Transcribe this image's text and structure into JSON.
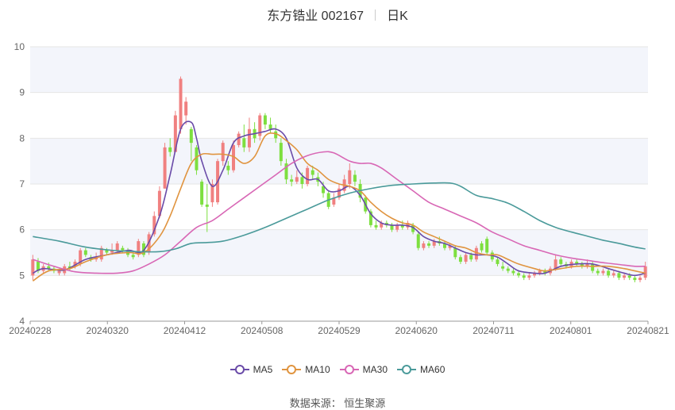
{
  "header": {
    "stock": "东方锆业 002167",
    "period": "日K"
  },
  "source_text": "数据来源： 恒生聚源",
  "colors": {
    "up": "#f08080",
    "down": "#7ddf3f",
    "ma5": "#6a4ba8",
    "ma10": "#e0943f",
    "ma30": "#d867b5",
    "ma60": "#4a9a9a",
    "band": "#f3f5fb",
    "grid": "#e6e6e6"
  },
  "legend": [
    {
      "key": "ma5",
      "label": "MA5"
    },
    {
      "key": "ma10",
      "label": "MA10"
    },
    {
      "key": "ma30",
      "label": "MA30"
    },
    {
      "key": "ma60",
      "label": "MA60"
    }
  ],
  "chart_data": {
    "type": "candlestick",
    "ylim": [
      4,
      10
    ],
    "yticks": [
      4,
      5,
      6,
      7,
      8,
      9,
      10
    ],
    "xticks": [
      "20240228",
      "20240320",
      "20240412",
      "20240508",
      "20240529",
      "20240620",
      "20240711",
      "20240801",
      "20240821"
    ],
    "n_candles": 117,
    "candles": [
      [
        5.0,
        5.35,
        5.45,
        4.9
      ],
      [
        5.3,
        5.1,
        5.38,
        5.05
      ],
      [
        5.1,
        5.2,
        5.25,
        5.05
      ],
      [
        5.2,
        5.15,
        5.28,
        5.1
      ],
      [
        5.15,
        5.1,
        5.2,
        5.05
      ],
      [
        5.05,
        5.1,
        5.15,
        5.0
      ],
      [
        5.05,
        5.2,
        5.25,
        5.0
      ],
      [
        5.2,
        5.15,
        5.3,
        5.1
      ],
      [
        5.2,
        5.3,
        5.35,
        5.15
      ],
      [
        5.25,
        5.55,
        5.6,
        5.2
      ],
      [
        5.55,
        5.45,
        5.6,
        5.4
      ],
      [
        5.4,
        5.35,
        5.45,
        5.3
      ],
      [
        5.35,
        5.4,
        5.5,
        5.3
      ],
      [
        5.35,
        5.6,
        5.65,
        5.3
      ],
      [
        5.55,
        5.5,
        5.6,
        5.45
      ],
      [
        5.5,
        5.55,
        5.7,
        5.45
      ],
      [
        5.55,
        5.7,
        5.75,
        5.5
      ],
      [
        5.6,
        5.55,
        5.65,
        5.5
      ],
      [
        5.55,
        5.45,
        5.6,
        5.4
      ],
      [
        5.45,
        5.4,
        5.5,
        5.35
      ],
      [
        5.45,
        5.75,
        5.8,
        5.4
      ],
      [
        5.7,
        5.45,
        5.75,
        5.4
      ],
      [
        5.5,
        5.9,
        5.95,
        5.45
      ],
      [
        5.9,
        6.3,
        6.4,
        5.85
      ],
      [
        6.3,
        6.85,
        6.95,
        6.25
      ],
      [
        6.9,
        7.8,
        7.9,
        6.9
      ],
      [
        7.8,
        7.7,
        8.0,
        7.6
      ],
      [
        7.7,
        8.5,
        8.6,
        7.7
      ],
      [
        8.2,
        9.3,
        9.35,
        8.1
      ],
      [
        8.5,
        8.8,
        8.9,
        8.3
      ],
      [
        8.2,
        7.9,
        8.25,
        7.5
      ],
      [
        7.8,
        7.3,
        7.85,
        7.2
      ],
      [
        7.05,
        6.55,
        7.1,
        6.5
      ],
      [
        6.55,
        6.5,
        7.0,
        5.95
      ],
      [
        6.6,
        7.0,
        7.1,
        6.5
      ],
      [
        6.6,
        7.5,
        7.55,
        6.55
      ],
      [
        7.5,
        7.9,
        7.95,
        7.4
      ],
      [
        7.4,
        7.3,
        7.5,
        7.2
      ],
      [
        7.3,
        7.85,
        7.95,
        7.25
      ],
      [
        7.85,
        8.1,
        8.15,
        7.8
      ],
      [
        8.0,
        7.8,
        8.3,
        7.7
      ],
      [
        7.8,
        8.2,
        8.45,
        7.7
      ],
      [
        8.2,
        8.0,
        8.35,
        7.9
      ],
      [
        8.05,
        8.5,
        8.55,
        7.95
      ],
      [
        8.5,
        8.3,
        8.55,
        8.2
      ],
      [
        8.3,
        8.2,
        8.45,
        8.1
      ],
      [
        8.15,
        8.0,
        8.3,
        7.9
      ],
      [
        7.9,
        7.5,
        8.0,
        7.4
      ],
      [
        7.45,
        7.1,
        7.55,
        7.0
      ],
      [
        7.1,
        7.05,
        7.2,
        6.95
      ],
      [
        7.05,
        7.15,
        7.3,
        7.0
      ],
      [
        7.15,
        7.0,
        7.25,
        6.9
      ],
      [
        7.0,
        7.35,
        7.4,
        6.95
      ],
      [
        7.3,
        7.2,
        7.4,
        7.1
      ],
      [
        7.15,
        7.05,
        7.25,
        6.95
      ],
      [
        6.95,
        6.8,
        7.05,
        6.7
      ],
      [
        6.8,
        6.5,
        6.85,
        6.45
      ],
      [
        6.55,
        6.7,
        6.8,
        6.5
      ],
      [
        6.7,
        6.9,
        7.0,
        6.65
      ],
      [
        6.85,
        7.1,
        7.2,
        6.8
      ],
      [
        7.0,
        7.3,
        7.45,
        6.9
      ],
      [
        7.2,
        7.05,
        7.3,
        6.95
      ],
      [
        7.0,
        6.7,
        7.1,
        6.6
      ],
      [
        6.7,
        6.4,
        6.75,
        6.35
      ],
      [
        6.4,
        6.1,
        6.45,
        6.05
      ],
      [
        6.1,
        6.05,
        6.2,
        6.0
      ],
      [
        6.05,
        6.15,
        6.2,
        6.0
      ],
      [
        6.15,
        6.1,
        6.2,
        6.05
      ],
      [
        6.1,
        6.0,
        6.15,
        5.95
      ],
      [
        6.0,
        6.1,
        6.15,
        5.95
      ],
      [
        6.1,
        6.05,
        6.2,
        6.0
      ],
      [
        6.05,
        6.15,
        6.2,
        6.0
      ],
      [
        6.1,
        5.95,
        6.15,
        5.9
      ],
      [
        5.9,
        5.6,
        5.95,
        5.55
      ],
      [
        5.6,
        5.7,
        5.75,
        5.55
      ],
      [
        5.7,
        5.65,
        5.75,
        5.6
      ],
      [
        5.65,
        5.75,
        5.8,
        5.6
      ],
      [
        5.75,
        5.7,
        5.85,
        5.65
      ],
      [
        5.7,
        5.6,
        5.75,
        5.55
      ],
      [
        5.6,
        5.65,
        5.7,
        5.55
      ],
      [
        5.6,
        5.4,
        5.65,
        5.35
      ],
      [
        5.4,
        5.3,
        5.45,
        5.25
      ],
      [
        5.3,
        5.45,
        5.5,
        5.25
      ],
      [
        5.45,
        5.35,
        5.5,
        5.3
      ],
      [
        5.35,
        5.6,
        5.65,
        5.3
      ],
      [
        5.7,
        5.55,
        5.75,
        5.5
      ],
      [
        5.8,
        5.5,
        5.85,
        5.45
      ],
      [
        5.5,
        5.35,
        5.55,
        5.3
      ],
      [
        5.35,
        5.25,
        5.4,
        5.2
      ],
      [
        5.2,
        5.15,
        5.3,
        5.1
      ],
      [
        5.15,
        5.1,
        5.2,
        5.05
      ],
      [
        5.1,
        5.05,
        5.15,
        5.0
      ],
      [
        5.05,
        5.0,
        5.1,
        4.95
      ],
      [
        5.0,
        4.95,
        5.05,
        4.9
      ],
      [
        4.95,
        5.0,
        5.05,
        4.9
      ],
      [
        5.0,
        5.05,
        5.1,
        4.95
      ],
      [
        5.05,
        5.1,
        5.15,
        5.0
      ],
      [
        5.1,
        5.05,
        5.15,
        5.0
      ],
      [
        5.05,
        5.15,
        5.2,
        5.0
      ],
      [
        5.15,
        5.35,
        5.45,
        5.1
      ],
      [
        5.35,
        5.25,
        5.4,
        5.2
      ],
      [
        5.25,
        5.2,
        5.3,
        5.15
      ],
      [
        5.2,
        5.3,
        5.35,
        5.15
      ],
      [
        5.3,
        5.25,
        5.35,
        5.2
      ],
      [
        5.25,
        5.2,
        5.3,
        5.15
      ],
      [
        5.2,
        5.25,
        5.35,
        5.15
      ],
      [
        5.25,
        5.1,
        5.3,
        5.05
      ],
      [
        5.1,
        5.05,
        5.15,
        5.0
      ],
      [
        5.05,
        5.1,
        5.15,
        5.0
      ],
      [
        5.1,
        5.0,
        5.15,
        4.95
      ],
      [
        5.0,
        5.05,
        5.1,
        4.95
      ],
      [
        5.05,
        4.95,
        5.1,
        4.9
      ],
      [
        4.95,
        5.0,
        5.05,
        4.9
      ],
      [
        5.0,
        4.95,
        5.05,
        4.9
      ],
      [
        4.95,
        4.9,
        5.0,
        4.85
      ],
      [
        4.9,
        4.95,
        5.0,
        4.85
      ],
      [
        4.95,
        5.2,
        5.3,
        4.9
      ]
    ],
    "series": [
      {
        "name": "MA5",
        "key": "ma5",
        "points": [
          [
            0,
            5.05
          ],
          [
            2,
            5.15
          ],
          [
            6,
            5.12
          ],
          [
            10,
            5.35
          ],
          [
            14,
            5.45
          ],
          [
            18,
            5.55
          ],
          [
            21,
            5.55
          ],
          [
            24,
            6.3
          ],
          [
            26,
            7.2
          ],
          [
            28,
            8.2
          ],
          [
            30,
            8.35
          ],
          [
            31,
            8.0
          ],
          [
            32,
            7.5
          ],
          [
            34,
            6.95
          ],
          [
            36,
            7.3
          ],
          [
            38,
            7.9
          ],
          [
            40,
            8.05
          ],
          [
            42,
            8.1
          ],
          [
            44,
            8.15
          ],
          [
            46,
            8.2
          ],
          [
            48,
            8.0
          ],
          [
            50,
            7.35
          ],
          [
            52,
            7.1
          ],
          [
            54,
            7.1
          ],
          [
            56,
            6.85
          ],
          [
            58,
            6.85
          ],
          [
            60,
            6.95
          ],
          [
            62,
            6.75
          ],
          [
            64,
            6.35
          ],
          [
            66,
            6.15
          ],
          [
            68,
            6.1
          ],
          [
            70,
            6.1
          ],
          [
            72,
            6.05
          ],
          [
            74,
            5.85
          ],
          [
            76,
            5.75
          ],
          [
            78,
            5.7
          ],
          [
            80,
            5.6
          ],
          [
            82,
            5.5
          ],
          [
            84,
            5.45
          ],
          [
            86,
            5.45
          ],
          [
            88,
            5.4
          ],
          [
            90,
            5.25
          ],
          [
            92,
            5.1
          ],
          [
            95,
            5.05
          ],
          [
            97,
            5.05
          ],
          [
            100,
            5.2
          ],
          [
            103,
            5.25
          ],
          [
            106,
            5.25
          ],
          [
            109,
            5.15
          ],
          [
            112,
            5.05
          ],
          [
            114,
            5.0
          ],
          [
            116,
            5.05
          ]
        ]
      },
      {
        "name": "MA10",
        "key": "ma10",
        "points": [
          [
            0,
            4.88
          ],
          [
            3,
            5.1
          ],
          [
            7,
            5.15
          ],
          [
            10,
            5.3
          ],
          [
            14,
            5.45
          ],
          [
            18,
            5.5
          ],
          [
            21,
            5.5
          ],
          [
            24,
            5.85
          ],
          [
            26,
            6.3
          ],
          [
            28,
            6.9
          ],
          [
            30,
            7.45
          ],
          [
            32,
            7.65
          ],
          [
            34,
            7.65
          ],
          [
            36,
            7.65
          ],
          [
            38,
            7.6
          ],
          [
            40,
            7.45
          ],
          [
            42,
            7.6
          ],
          [
            44,
            8.05
          ],
          [
            46,
            8.1
          ],
          [
            48,
            7.95
          ],
          [
            50,
            7.75
          ],
          [
            52,
            7.45
          ],
          [
            54,
            7.3
          ],
          [
            56,
            7.1
          ],
          [
            58,
            7.0
          ],
          [
            60,
            6.95
          ],
          [
            62,
            6.85
          ],
          [
            64,
            6.6
          ],
          [
            66,
            6.4
          ],
          [
            68,
            6.25
          ],
          [
            70,
            6.15
          ],
          [
            72,
            6.1
          ],
          [
            74,
            5.95
          ],
          [
            76,
            5.85
          ],
          [
            78,
            5.75
          ],
          [
            80,
            5.65
          ],
          [
            82,
            5.6
          ],
          [
            84,
            5.5
          ],
          [
            86,
            5.45
          ],
          [
            88,
            5.45
          ],
          [
            90,
            5.35
          ],
          [
            92,
            5.25
          ],
          [
            95,
            5.15
          ],
          [
            97,
            5.1
          ],
          [
            100,
            5.15
          ],
          [
            103,
            5.2
          ],
          [
            106,
            5.2
          ],
          [
            109,
            5.2
          ],
          [
            112,
            5.15
          ],
          [
            114,
            5.1
          ],
          [
            116,
            5.05
          ]
        ]
      },
      {
        "name": "MA30",
        "key": "ma30",
        "points": [
          [
            0,
            5.35
          ],
          [
            4,
            5.2
          ],
          [
            8,
            5.08
          ],
          [
            12,
            5.05
          ],
          [
            16,
            5.05
          ],
          [
            19,
            5.1
          ],
          [
            22,
            5.25
          ],
          [
            25,
            5.45
          ],
          [
            28,
            5.75
          ],
          [
            31,
            6.05
          ],
          [
            34,
            6.2
          ],
          [
            37,
            6.45
          ],
          [
            40,
            6.7
          ],
          [
            43,
            6.95
          ],
          [
            46,
            7.2
          ],
          [
            49,
            7.45
          ],
          [
            52,
            7.62
          ],
          [
            55,
            7.7
          ],
          [
            57,
            7.68
          ],
          [
            60,
            7.5
          ],
          [
            62,
            7.45
          ],
          [
            64,
            7.45
          ],
          [
            66,
            7.35
          ],
          [
            69,
            7.1
          ],
          [
            72,
            6.85
          ],
          [
            75,
            6.6
          ],
          [
            78,
            6.45
          ],
          [
            81,
            6.3
          ],
          [
            84,
            6.15
          ],
          [
            87,
            5.95
          ],
          [
            90,
            5.8
          ],
          [
            93,
            5.65
          ],
          [
            96,
            5.55
          ],
          [
            99,
            5.45
          ],
          [
            102,
            5.38
          ],
          [
            105,
            5.33
          ],
          [
            108,
            5.28
          ],
          [
            111,
            5.24
          ],
          [
            114,
            5.2
          ],
          [
            116,
            5.2
          ]
        ]
      },
      {
        "name": "MA60",
        "key": "ma60",
        "points": [
          [
            0,
            5.85
          ],
          [
            5,
            5.75
          ],
          [
            10,
            5.62
          ],
          [
            15,
            5.55
          ],
          [
            20,
            5.52
          ],
          [
            24,
            5.52
          ],
          [
            27,
            5.58
          ],
          [
            30,
            5.7
          ],
          [
            33,
            5.72
          ],
          [
            36,
            5.75
          ],
          [
            40,
            5.88
          ],
          [
            44,
            6.05
          ],
          [
            48,
            6.25
          ],
          [
            52,
            6.45
          ],
          [
            56,
            6.65
          ],
          [
            60,
            6.8
          ],
          [
            64,
            6.9
          ],
          [
            68,
            6.97
          ],
          [
            72,
            7.0
          ],
          [
            76,
            7.02
          ],
          [
            79,
            7.02
          ],
          [
            81,
            6.95
          ],
          [
            84,
            6.75
          ],
          [
            87,
            6.68
          ],
          [
            90,
            6.58
          ],
          [
            93,
            6.4
          ],
          [
            96,
            6.2
          ],
          [
            99,
            6.05
          ],
          [
            102,
            5.95
          ],
          [
            105,
            5.86
          ],
          [
            108,
            5.77
          ],
          [
            111,
            5.7
          ],
          [
            114,
            5.62
          ],
          [
            116,
            5.58
          ]
        ]
      }
    ]
  }
}
